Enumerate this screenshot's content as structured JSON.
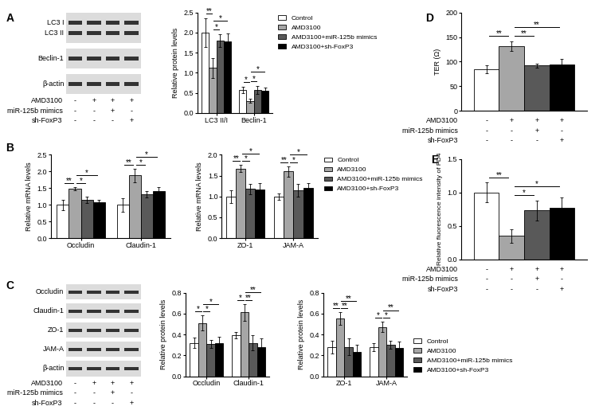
{
  "panel_labels": [
    "A",
    "B",
    "C",
    "D",
    "E"
  ],
  "treatment_matrix": {
    "rows": [
      "AMD3100",
      "miR-125b mimics",
      "sh-FoxP3"
    ],
    "signs": [
      [
        "-",
        "+",
        "+",
        "+"
      ],
      [
        "-",
        "-",
        "+",
        "-"
      ],
      [
        "-",
        "-",
        "-",
        "+"
      ]
    ]
  },
  "blots": [
    {
      "rows": [
        [
          "LC3 I",
          "LC3 II"
        ],
        [
          "Beclin-1"
        ],
        [
          "β-actin"
        ]
      ]
    },
    {
      "rows": [
        [
          "Occludin"
        ],
        [
          "Claudin-1"
        ],
        [
          "ZO-1"
        ],
        [
          "JAM-A"
        ],
        [
          "β-actin"
        ]
      ]
    }
  ],
  "chart_data": [
    {
      "type": "bar",
      "ylabel": "Relative protein levels",
      "categories": [
        "LC3 II/I",
        "Beclin-1"
      ],
      "series": [
        {
          "name": "Control",
          "color": "#ffffff",
          "values": [
            2.0,
            0.57
          ],
          "errors": [
            0.35,
            0.08
          ]
        },
        {
          "name": "AMD3100",
          "color": "#a6a6a6",
          "values": [
            1.12,
            0.3
          ],
          "errors": [
            0.25,
            0.05
          ]
        },
        {
          "name": "AMD3100+miR-125b mimics",
          "color": "#595959",
          "values": [
            1.8,
            0.57
          ],
          "errors": [
            0.15,
            0.1
          ]
        },
        {
          "name": "AMD3100+sh-FoxP3",
          "color": "#000000",
          "values": [
            1.78,
            0.55
          ],
          "errors": [
            0.2,
            0.08
          ]
        }
      ],
      "ylim": [
        0,
        2.5
      ],
      "yticks": [
        {
          "value": 0,
          "label": "0.0"
        },
        {
          "value": 0.5,
          "label": "0.5"
        },
        {
          "value": 1,
          "label": "1.0"
        },
        {
          "value": 1.5,
          "label": "1.5"
        },
        {
          "value": 2,
          "label": "2.0"
        },
        {
          "value": 2.5,
          "label": "2.5"
        }
      ],
      "significance": [
        {
          "category": 0,
          "from": 0,
          "to": 1,
          "label": "**"
        },
        {
          "category": 0,
          "from": 1,
          "to": 2,
          "label": "*"
        },
        {
          "category": 0,
          "from": 1,
          "to": 3,
          "label": "*"
        },
        {
          "category": 1,
          "from": 0,
          "to": 1,
          "label": "*"
        },
        {
          "category": 1,
          "from": 1,
          "to": 2,
          "label": "*"
        },
        {
          "category": 1,
          "from": 1,
          "to": 3,
          "label": "*"
        }
      ],
      "legend": "upper left"
    },
    {
      "type": "bar",
      "ylabel": "Relative mRNA levels",
      "categories": [
        "Occludin",
        "Claudin-1"
      ],
      "series": [
        {
          "name": "Control",
          "color": "#ffffff",
          "values": [
            1.0,
            1.0
          ],
          "errors": [
            0.15,
            0.2
          ]
        },
        {
          "name": "AMD3100",
          "color": "#a6a6a6",
          "values": [
            1.48,
            1.88
          ],
          "errors": [
            0.05,
            0.2
          ]
        },
        {
          "name": "AMD3100+miR-125b mimics",
          "color": "#595959",
          "values": [
            1.15,
            1.32
          ],
          "errors": [
            0.1,
            0.1
          ]
        },
        {
          "name": "AMD3100+sh-FoxP3",
          "color": "#000000",
          "values": [
            1.07,
            1.4
          ],
          "errors": [
            0.08,
            0.12
          ]
        }
      ],
      "ylim": [
        0,
        2.5
      ],
      "yticks": [
        {
          "value": 0,
          "label": "0.0"
        },
        {
          "value": 0.5,
          "label": "0.5"
        },
        {
          "value": 1,
          "label": "1.0"
        },
        {
          "value": 1.5,
          "label": "1.5"
        },
        {
          "value": 2,
          "label": "2.0"
        },
        {
          "value": 2.5,
          "label": "2.5"
        }
      ],
      "significance": [
        {
          "category": 0,
          "from": 0,
          "to": 1,
          "label": "**"
        },
        {
          "category": 0,
          "from": 1,
          "to": 2,
          "label": "*"
        },
        {
          "category": 0,
          "from": 1,
          "to": 3,
          "label": "*"
        },
        {
          "category": 1,
          "from": 0,
          "to": 1,
          "label": "**"
        },
        {
          "category": 1,
          "from": 1,
          "to": 2,
          "label": "*"
        },
        {
          "category": 1,
          "from": 1,
          "to": 3,
          "label": "*"
        }
      ]
    },
    {
      "type": "bar",
      "ylabel": "Relative mRNA levels",
      "categories": [
        "ZO-1",
        "JAM-A"
      ],
      "series": [
        {
          "name": "Control",
          "color": "#ffffff",
          "values": [
            1.0,
            1.0
          ],
          "errors": [
            0.15,
            0.08
          ]
        },
        {
          "name": "AMD3100",
          "color": "#a6a6a6",
          "values": [
            1.67,
            1.6
          ],
          "errors": [
            0.08,
            0.12
          ]
        },
        {
          "name": "AMD3100+miR-125b mimics",
          "color": "#595959",
          "values": [
            1.18,
            1.15
          ],
          "errors": [
            0.12,
            0.15
          ]
        },
        {
          "name": "AMD3100+sh-FoxP3",
          "color": "#000000",
          "values": [
            1.17,
            1.2
          ],
          "errors": [
            0.15,
            0.12
          ]
        }
      ],
      "ylim": [
        0,
        2.0
      ],
      "yticks": [
        {
          "value": 0,
          "label": "0.0"
        },
        {
          "value": 0.5,
          "label": "0.5"
        },
        {
          "value": 1,
          "label": "1.0"
        },
        {
          "value": 1.5,
          "label": "1.5"
        },
        {
          "value": 2,
          "label": "2.0"
        }
      ],
      "significance": [
        {
          "category": 0,
          "from": 0,
          "to": 1,
          "label": "**"
        },
        {
          "category": 0,
          "from": 1,
          "to": 2,
          "label": "*"
        },
        {
          "category": 0,
          "from": 1,
          "to": 3,
          "label": "*"
        },
        {
          "category": 1,
          "from": 0,
          "to": 1,
          "label": "**"
        },
        {
          "category": 1,
          "from": 1,
          "to": 2,
          "label": "*"
        },
        {
          "category": 1,
          "from": 1,
          "to": 3,
          "label": "*"
        }
      ],
      "legend": "upper left"
    },
    {
      "type": "bar",
      "ylabel": "Relative protein levels",
      "categories": [
        "Occludin",
        "Claudin-1"
      ],
      "series": [
        {
          "name": "Control",
          "color": "#ffffff",
          "values": [
            0.32,
            0.39
          ],
          "errors": [
            0.05,
            0.03
          ]
        },
        {
          "name": "AMD3100",
          "color": "#a6a6a6",
          "values": [
            0.51,
            0.61
          ],
          "errors": [
            0.07,
            0.08
          ]
        },
        {
          "name": "AMD3100+miR-125b mimics",
          "color": "#595959",
          "values": [
            0.31,
            0.32
          ],
          "errors": [
            0.04,
            0.07
          ]
        },
        {
          "name": "AMD3100+sh-FoxP3",
          "color": "#000000",
          "values": [
            0.32,
            0.28
          ],
          "errors": [
            0.06,
            0.08
          ]
        }
      ],
      "ylim": [
        0,
        0.8
      ],
      "yticks": [
        {
          "value": 0,
          "label": "0.0"
        },
        {
          "value": 0.2,
          "label": "0.2"
        },
        {
          "value": 0.4,
          "label": "0.4"
        },
        {
          "value": 0.6,
          "label": "0.6"
        },
        {
          "value": 0.8,
          "label": "0.8"
        }
      ],
      "significance": [
        {
          "category": 0,
          "from": 0,
          "to": 1,
          "label": "*"
        },
        {
          "category": 0,
          "from": 1,
          "to": 2,
          "label": "*"
        },
        {
          "category": 0,
          "from": 1,
          "to": 3,
          "label": "*"
        },
        {
          "category": 1,
          "from": 0,
          "to": 1,
          "label": "*"
        },
        {
          "category": 1,
          "from": 1,
          "to": 2,
          "label": "**"
        },
        {
          "category": 1,
          "from": 1,
          "to": 3,
          "label": "**"
        }
      ]
    },
    {
      "type": "bar",
      "ylabel": "Relative protein levels",
      "categories": [
        "ZO-1",
        "JAM-A"
      ],
      "series": [
        {
          "name": "Control",
          "color": "#ffffff",
          "values": [
            0.28,
            0.28
          ],
          "errors": [
            0.06,
            0.04
          ]
        },
        {
          "name": "AMD3100",
          "color": "#a6a6a6",
          "values": [
            0.55,
            0.47
          ],
          "errors": [
            0.06,
            0.05
          ]
        },
        {
          "name": "AMD3100+miR-125b mimics",
          "color": "#595959",
          "values": [
            0.28,
            0.3
          ],
          "errors": [
            0.08,
            0.04
          ]
        },
        {
          "name": "AMD3100+sh-FoxP3",
          "color": "#000000",
          "values": [
            0.23,
            0.27
          ],
          "errors": [
            0.07,
            0.06
          ]
        }
      ],
      "ylim": [
        0,
        0.8
      ],
      "yticks": [
        {
          "value": 0,
          "label": "0.0"
        },
        {
          "value": 0.2,
          "label": "0.2"
        },
        {
          "value": 0.4,
          "label": "0.4"
        },
        {
          "value": 0.6,
          "label": "0.6"
        },
        {
          "value": 0.8,
          "label": "0.8"
        }
      ],
      "significance": [
        {
          "category": 0,
          "from": 0,
          "to": 1,
          "label": "**"
        },
        {
          "category": 0,
          "from": 1,
          "to": 2,
          "label": "**"
        },
        {
          "category": 0,
          "from": 1,
          "to": 3,
          "label": "**"
        },
        {
          "category": 1,
          "from": 0,
          "to": 1,
          "label": "*"
        },
        {
          "category": 1,
          "from": 1,
          "to": 2,
          "label": "*"
        },
        {
          "category": 1,
          "from": 1,
          "to": 3,
          "label": "**"
        }
      ],
      "legend": "lower left"
    },
    {
      "type": "bar",
      "ylabel": "TER (Ω)",
      "categories": [
        null
      ],
      "series": [
        {
          "name": "Control",
          "color": "#ffffff",
          "values": [
            85
          ],
          "errors": [
            8
          ]
        },
        {
          "name": "AMD3100",
          "color": "#a6a6a6",
          "values": [
            132
          ],
          "errors": [
            10
          ]
        },
        {
          "name": "AMD3100+miR-125b mimics",
          "color": "#595959",
          "values": [
            92
          ],
          "errors": [
            4
          ]
        },
        {
          "name": "AMD3100+sh-FoxP3",
          "color": "#000000",
          "values": [
            95
          ],
          "errors": [
            10
          ]
        }
      ],
      "ylim": [
        0,
        200
      ],
      "yticks": [
        0,
        50,
        100,
        150,
        200
      ],
      "significance": [
        {
          "category": 0,
          "from": 0,
          "to": 1,
          "label": "**"
        },
        {
          "category": 0,
          "from": 1,
          "to": 2,
          "label": "**"
        },
        {
          "category": 0,
          "from": 1,
          "to": 3,
          "label": "**"
        }
      ]
    },
    {
      "type": "bar",
      "ylabel": "Relative fluorescence intensity of FD4",
      "categories": [
        null
      ],
      "series": [
        {
          "name": "Control",
          "color": "#ffffff",
          "values": [
            1.0
          ],
          "errors": [
            0.15
          ]
        },
        {
          "name": "AMD3100",
          "color": "#a6a6a6",
          "values": [
            0.35
          ],
          "errors": [
            0.1
          ]
        },
        {
          "name": "AMD3100+miR-125b mimics",
          "color": "#595959",
          "values": [
            0.73
          ],
          "errors": [
            0.15
          ]
        },
        {
          "name": "AMD3100+sh-FoxP3",
          "color": "#000000",
          "values": [
            0.77
          ],
          "errors": [
            0.15
          ]
        }
      ],
      "ylim": [
        0,
        1.5
      ],
      "yticks": [
        {
          "value": 0,
          "label": "0.0"
        },
        {
          "value": 0.5,
          "label": "0.5"
        },
        {
          "value": 1,
          "label": "1.0"
        },
        {
          "value": 1.5,
          "label": "1.5"
        }
      ],
      "significance": [
        {
          "category": 0,
          "from": 0,
          "to": 1,
          "label": "**"
        },
        {
          "category": 0,
          "from": 1,
          "to": 2,
          "label": "*"
        },
        {
          "category": 0,
          "from": 1,
          "to": 3,
          "label": "*"
        }
      ]
    }
  ]
}
